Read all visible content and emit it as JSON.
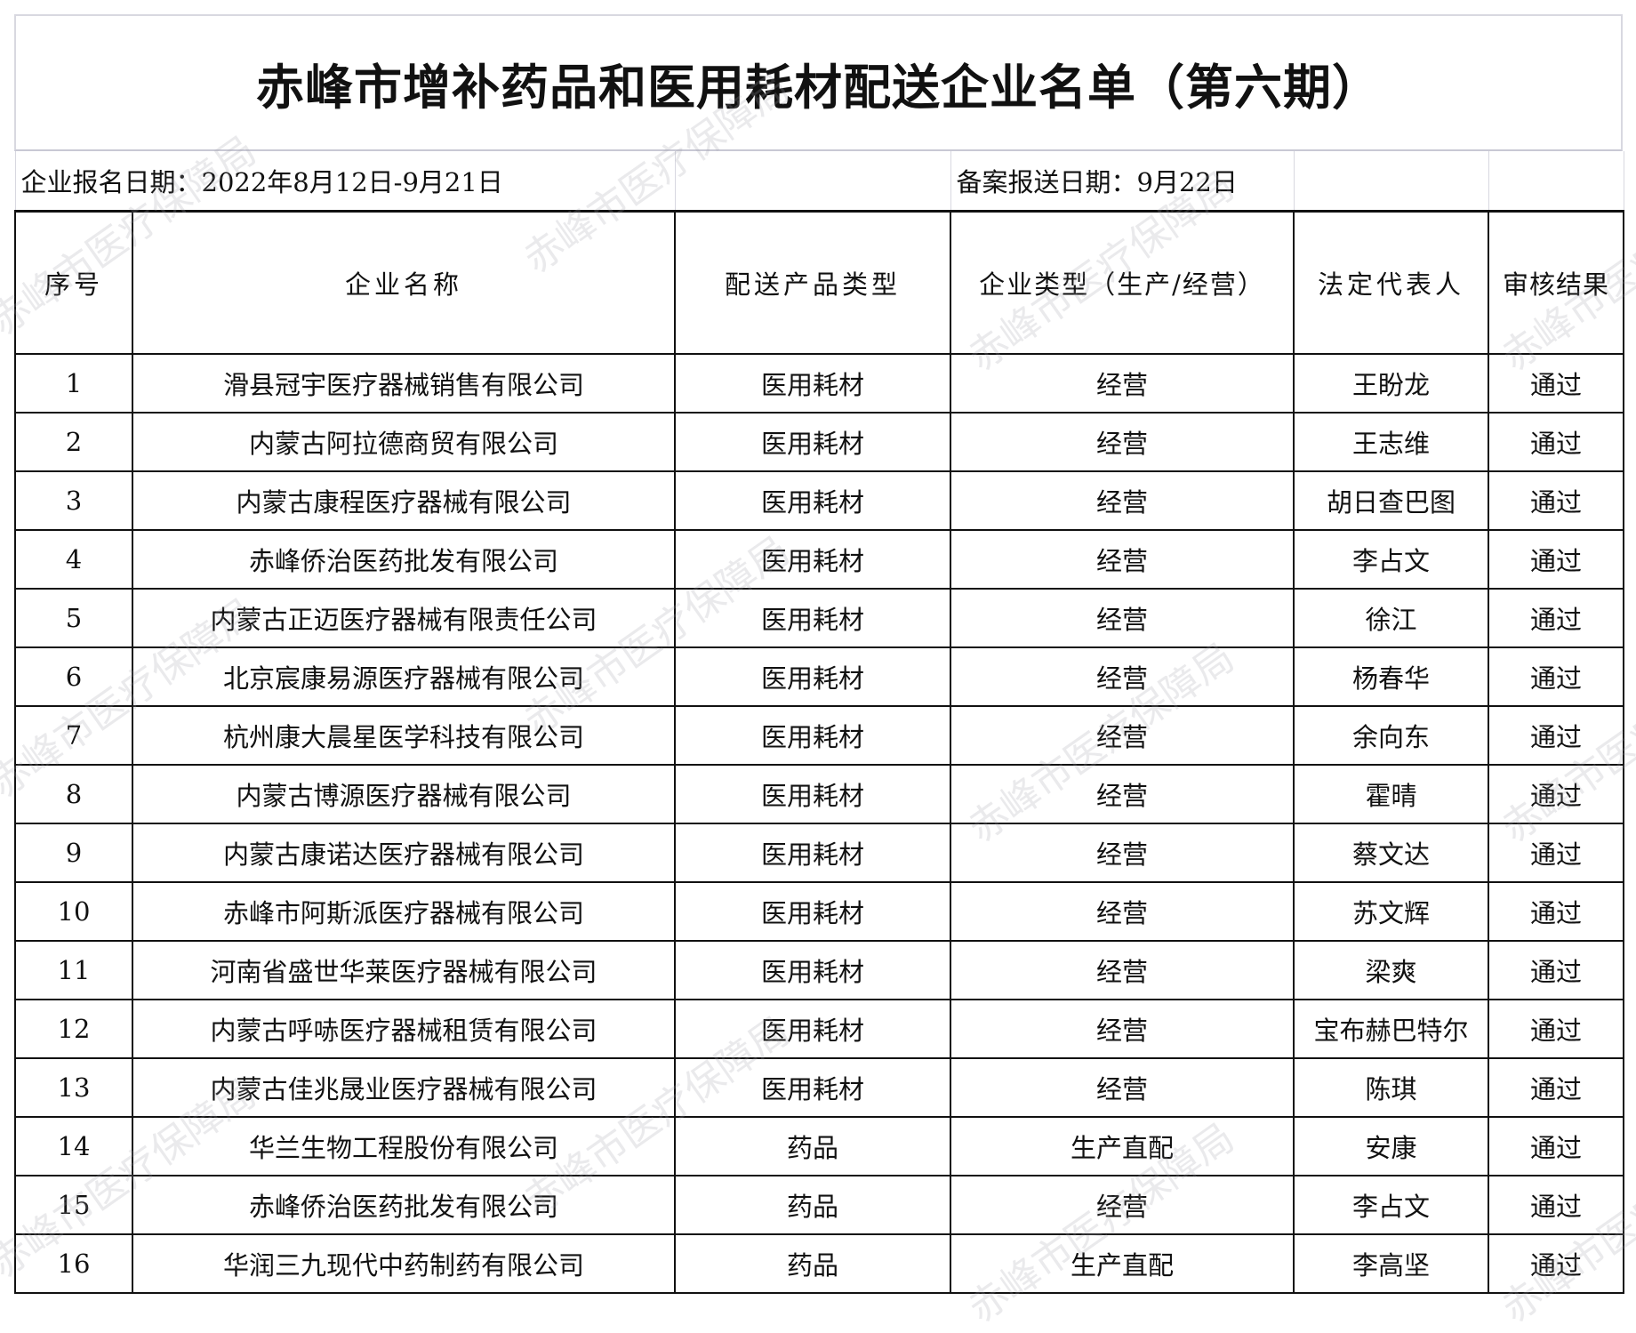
{
  "title": "赤峰市增补药品和医用耗材配送企业名单（第六期）",
  "info": {
    "registration_date": "企业报名日期：2022年8月12日-9月21日",
    "filing_date": "备案报送日期：9月22日"
  },
  "headers": [
    "序号",
    "企业名称",
    "配送产品类型",
    "企业类型（生产/经营）",
    "法定代表人",
    "审核结果"
  ],
  "rows": [
    [
      "1",
      "滑县冠宇医疗器械销售有限公司",
      "医用耗材",
      "经营",
      "王盼龙",
      "通过"
    ],
    [
      "2",
      "内蒙古阿拉德商贸有限公司",
      "医用耗材",
      "经营",
      "王志维",
      "通过"
    ],
    [
      "3",
      "内蒙古康程医疗器械有限公司",
      "医用耗材",
      "经营",
      "胡日查巴图",
      "通过"
    ],
    [
      "4",
      "赤峰侨治医药批发有限公司",
      "医用耗材",
      "经营",
      "李占文",
      "通过"
    ],
    [
      "5",
      "内蒙古正迈医疗器械有限责任公司",
      "医用耗材",
      "经营",
      "徐江",
      "通过"
    ],
    [
      "6",
      "北京宸康易源医疗器械有限公司",
      "医用耗材",
      "经营",
      "杨春华",
      "通过"
    ],
    [
      "7",
      "杭州康大晨星医学科技有限公司",
      "医用耗材",
      "经营",
      "余向东",
      "通过"
    ],
    [
      "8",
      "内蒙古博源医疗器械有限公司",
      "医用耗材",
      "经营",
      "霍晴",
      "通过"
    ],
    [
      "9",
      "内蒙古康诺达医疗器械有限公司",
      "医用耗材",
      "经营",
      "蔡文达",
      "通过"
    ],
    [
      "10",
      "赤峰市阿斯派医疗器械有限公司",
      "医用耗材",
      "经营",
      "苏文辉",
      "通过"
    ],
    [
      "11",
      "河南省盛世华莱医疗器械有限公司",
      "医用耗材",
      "经营",
      "梁爽",
      "通过"
    ],
    [
      "12",
      "内蒙古呼哧医疗器械租赁有限公司",
      "医用耗材",
      "经营",
      "宝布赫巴特尔",
      "通过"
    ],
    [
      "13",
      "内蒙古佳兆晟业医疗器械有限公司",
      "医用耗材",
      "经营",
      "陈琪",
      "通过"
    ],
    [
      "14",
      "华兰生物工程股份有限公司",
      "药品",
      "生产直配",
      "安康",
      "通过"
    ],
    [
      "15",
      "赤峰侨治医药批发有限公司",
      "药品",
      "经营",
      "李占文",
      "通过"
    ],
    [
      "16",
      "华润三九现代中药制药有限公司",
      "药品",
      "生产直配",
      "李高坚",
      "通过"
    ]
  ],
  "watermark": "赤峰市医疗保障局"
}
